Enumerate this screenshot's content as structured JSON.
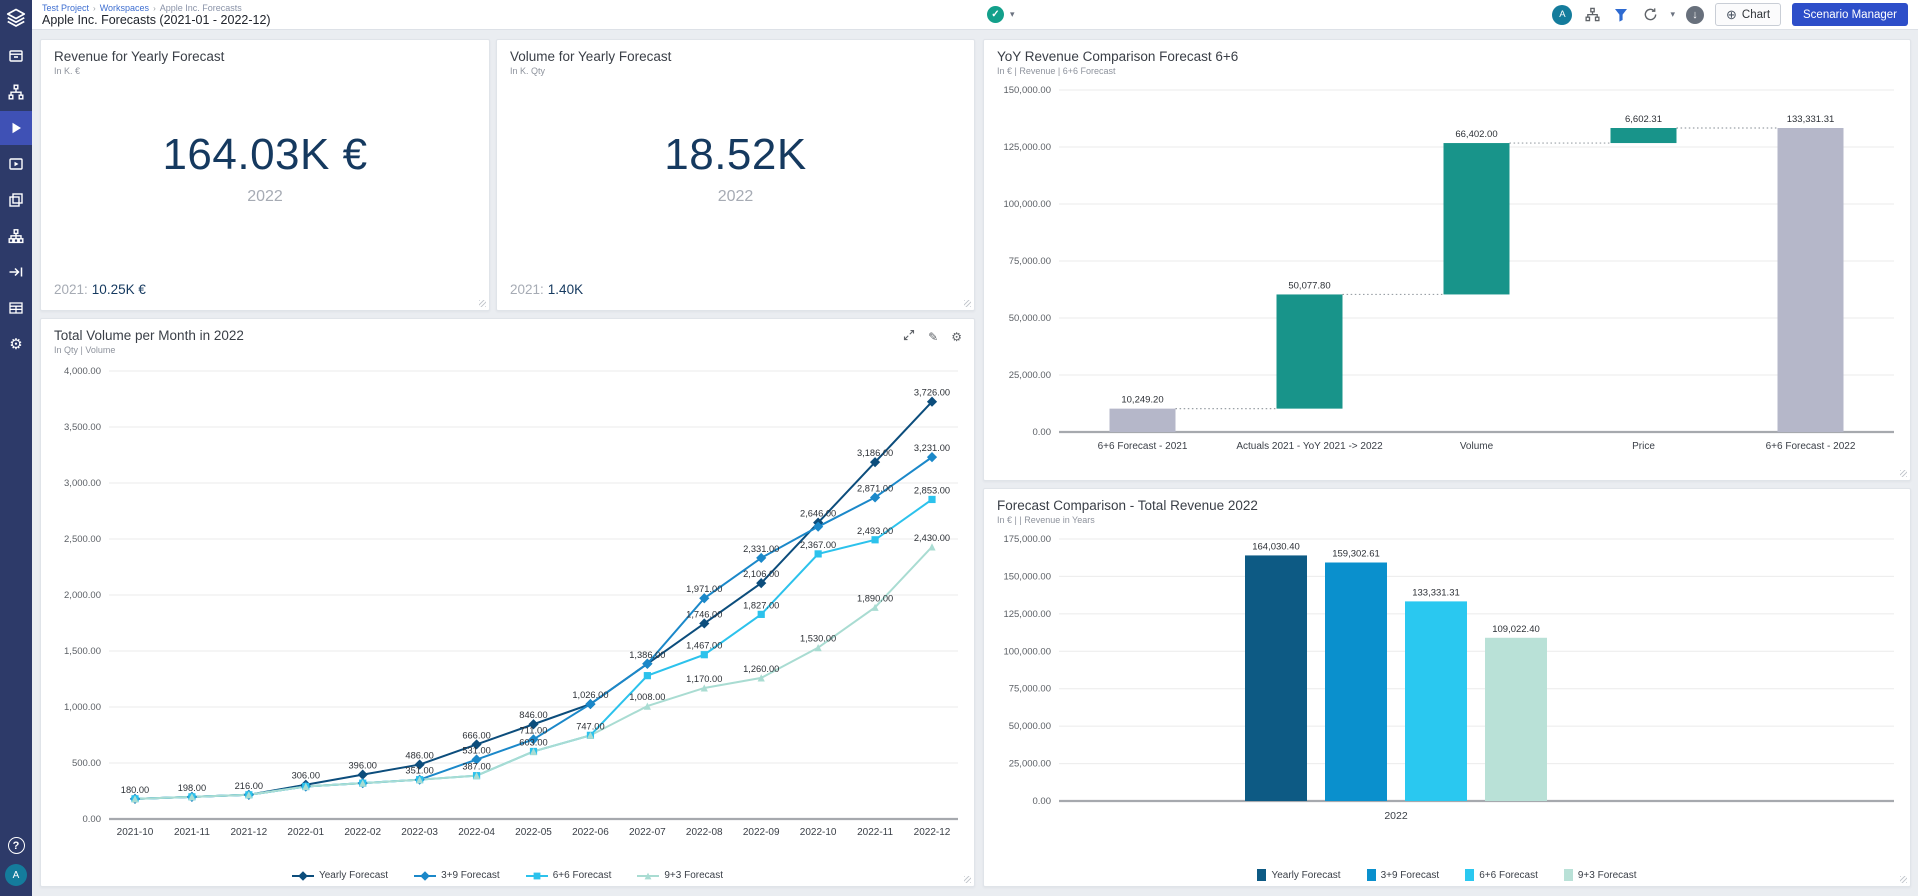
{
  "header": {
    "breadcrumb": [
      "Test Project",
      "Workspaces",
      "Apple Inc. Forecasts"
    ],
    "title": "Apple Inc. Forecasts (2021-01 - 2022-12)",
    "actions": {
      "avatar_initial": "A",
      "chart_label": "Chart",
      "scenario_label": "Scenario Manager"
    }
  },
  "icons": {
    "check": "✓",
    "caret": "▾",
    "plus_circle": "⊕",
    "down_arrow": "↓",
    "question": "?",
    "gear": "⚙",
    "pencil": "✎"
  },
  "sidebar": {
    "avatar_initial": "A",
    "items": [
      {
        "name": "logo",
        "icon": "layers-logo-icon",
        "active": false
      },
      {
        "name": "models",
        "icon": "archive-icon",
        "active": false
      },
      {
        "name": "drivertree",
        "icon": "sitemap-icon",
        "active": false
      },
      {
        "name": "simulations",
        "icon": "play-icon",
        "active": true
      },
      {
        "name": "presentations",
        "icon": "play-frame-icon",
        "active": false
      },
      {
        "name": "workspaces",
        "icon": "copy-icon",
        "active": false
      },
      {
        "name": "scenarios",
        "icon": "hierarchy-icon",
        "active": false
      },
      {
        "name": "import",
        "icon": "arrow-line-icon",
        "active": false
      },
      {
        "name": "data-tables",
        "icon": "table-icon",
        "active": false
      },
      {
        "name": "settings",
        "icon": "gear-icon",
        "active": false
      }
    ]
  },
  "kpi_cards": [
    {
      "title": "Revenue for Yearly Forecast",
      "subtitle": "In K. €",
      "value": "164.03K €",
      "period": "2022",
      "prev_label": "2021:",
      "prev_value": "10.25K €"
    },
    {
      "title": "Volume for Yearly Forecast",
      "subtitle": "In K. Qty",
      "value": "18.52K",
      "period": "2022",
      "prev_label": "2021:",
      "prev_value": "1.40K"
    }
  ],
  "line_chart": {
    "type": "line",
    "title": "Total Volume per Month in 2022",
    "subtitle": "In Qty  | Volume",
    "x": [
      "2021-10",
      "2021-11",
      "2021-12",
      "2022-01",
      "2022-02",
      "2022-03",
      "2022-04",
      "2022-05",
      "2022-06",
      "2022-07",
      "2022-08",
      "2022-09",
      "2022-10",
      "2022-11",
      "2022-12"
    ],
    "ylim": [
      0,
      4000
    ],
    "ytick_step": 500,
    "grid": true,
    "legend_position": "bottom",
    "series": [
      {
        "name": "Yearly Forecast",
        "color": "#0c4d7c",
        "marker": "diamond",
        "values": [
          180,
          198,
          216,
          306,
          396,
          486,
          666,
          846,
          1026,
          1386,
          1746,
          2106,
          2646,
          3186,
          3726
        ],
        "labeled": [
          true,
          true,
          true,
          true,
          true,
          true,
          true,
          true,
          true,
          true,
          true,
          true,
          true,
          true,
          true
        ]
      },
      {
        "name": "3+9 Forecast",
        "color": "#1b88c9",
        "marker": "diamond",
        "values": [
          180,
          198,
          216,
          290,
          320,
          351,
          531,
          711,
          1026,
          1386,
          1971,
          2331,
          2610,
          2871,
          3231
        ],
        "labeled": [
          false,
          false,
          false,
          false,
          false,
          false,
          true,
          true,
          false,
          false,
          true,
          true,
          false,
          true,
          true
        ]
      },
      {
        "name": "6+6 Forecast",
        "color": "#2cc2ec",
        "marker": "square",
        "values": [
          180,
          198,
          216,
          290,
          320,
          351,
          387,
          603,
          747,
          1280,
          1467,
          1827,
          2367,
          2493,
          2853
        ],
        "labeled": [
          false,
          false,
          false,
          false,
          false,
          false,
          false,
          false,
          false,
          false,
          true,
          true,
          true,
          true,
          true
        ]
      },
      {
        "name": "9+3 Forecast",
        "color": "#a9dcd2",
        "marker": "triangle",
        "values": [
          180,
          198,
          216,
          290,
          320,
          351,
          387,
          603,
          747,
          1008,
          1170,
          1260,
          1530,
          1890,
          2430
        ],
        "labeled": [
          false,
          false,
          false,
          false,
          false,
          true,
          true,
          true,
          true,
          true,
          true,
          true,
          true,
          true,
          true
        ]
      }
    ]
  },
  "waterfall_chart": {
    "type": "waterfall",
    "title": "YoY Revenue Comparison Forecast 6+6",
    "subtitle": "In €  | Revenue  | 6+6 Forecast",
    "categories": [
      "6+6 Forecast - 2021",
      "Actuals 2021 - YoY 2021 -> 2022",
      "Volume",
      "Price",
      "6+6 Forecast - 2022"
    ],
    "values": [
      10249.2,
      50077.8,
      66402.0,
      6602.31,
      133331.31
    ],
    "bar_types": [
      "total",
      "delta",
      "delta",
      "delta",
      "total"
    ],
    "total_color": "#b5b7c9",
    "delta_color": "#18948a",
    "ylim": [
      0,
      150000
    ],
    "ytick_step": 25000,
    "grid": true
  },
  "bar_chart": {
    "type": "bar",
    "title": "Forecast Comparison - Total Revenue 2022",
    "subtitle": "In €  |  | Revenue in Years",
    "categories": [
      "Yearly Forecast",
      "3+9 Forecast",
      "6+6 Forecast",
      "9+3 Forecast"
    ],
    "values": [
      164030.4,
      159302.61,
      133331.31,
      109022.4
    ],
    "colors": [
      "#0d5a84",
      "#0a90cd",
      "#2ac8f0",
      "#b9e1d7"
    ],
    "group_label": "2022",
    "ylim": [
      0,
      175000
    ],
    "ytick_step": 25000,
    "grid": true,
    "legend_position": "bottom"
  }
}
